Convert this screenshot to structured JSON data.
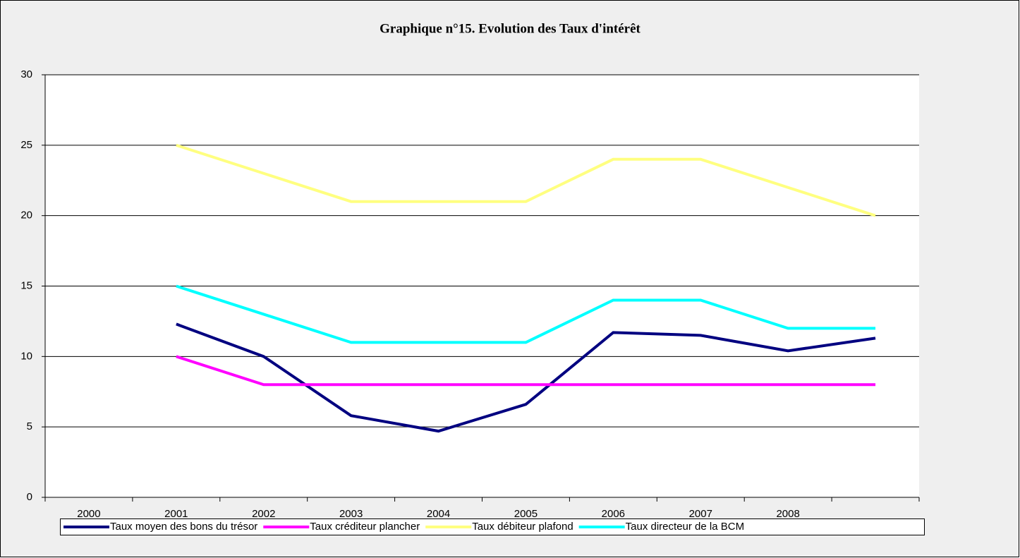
{
  "chart_data": {
    "type": "line",
    "title": "Graphique n°15. Evolution des Taux d'intérêt",
    "categories": [
      "2000",
      "2001",
      "2002",
      "2003",
      "2004",
      "2005",
      "2006",
      "2007",
      "2008",
      null
    ],
    "series": [
      {
        "name": "Taux moyen des bons du trésor",
        "color": "#000080",
        "values": [
          null,
          12.3,
          10,
          5.8,
          4.7,
          6.6,
          11.7,
          11.5,
          10.4,
          11.3
        ]
      },
      {
        "name": "Taux créditeur plancher",
        "color": "#ff00ff",
        "values": [
          null,
          10,
          8,
          8,
          8,
          8,
          8,
          8,
          8,
          8
        ]
      },
      {
        "name": "Taux débiteur plafond",
        "color": "#ffff80",
        "values": [
          null,
          25,
          23,
          21,
          21,
          21,
          24,
          24,
          22,
          20
        ]
      },
      {
        "name": "Taux directeur de la BCM",
        "color": "#00ffff",
        "values": [
          null,
          15,
          13,
          11,
          11,
          11,
          14,
          14,
          12,
          12
        ]
      }
    ],
    "ylim": [
      0,
      30
    ],
    "yticks": [
      0,
      5,
      10,
      15,
      20,
      25,
      30
    ],
    "grid": true,
    "legend": "bottom"
  }
}
